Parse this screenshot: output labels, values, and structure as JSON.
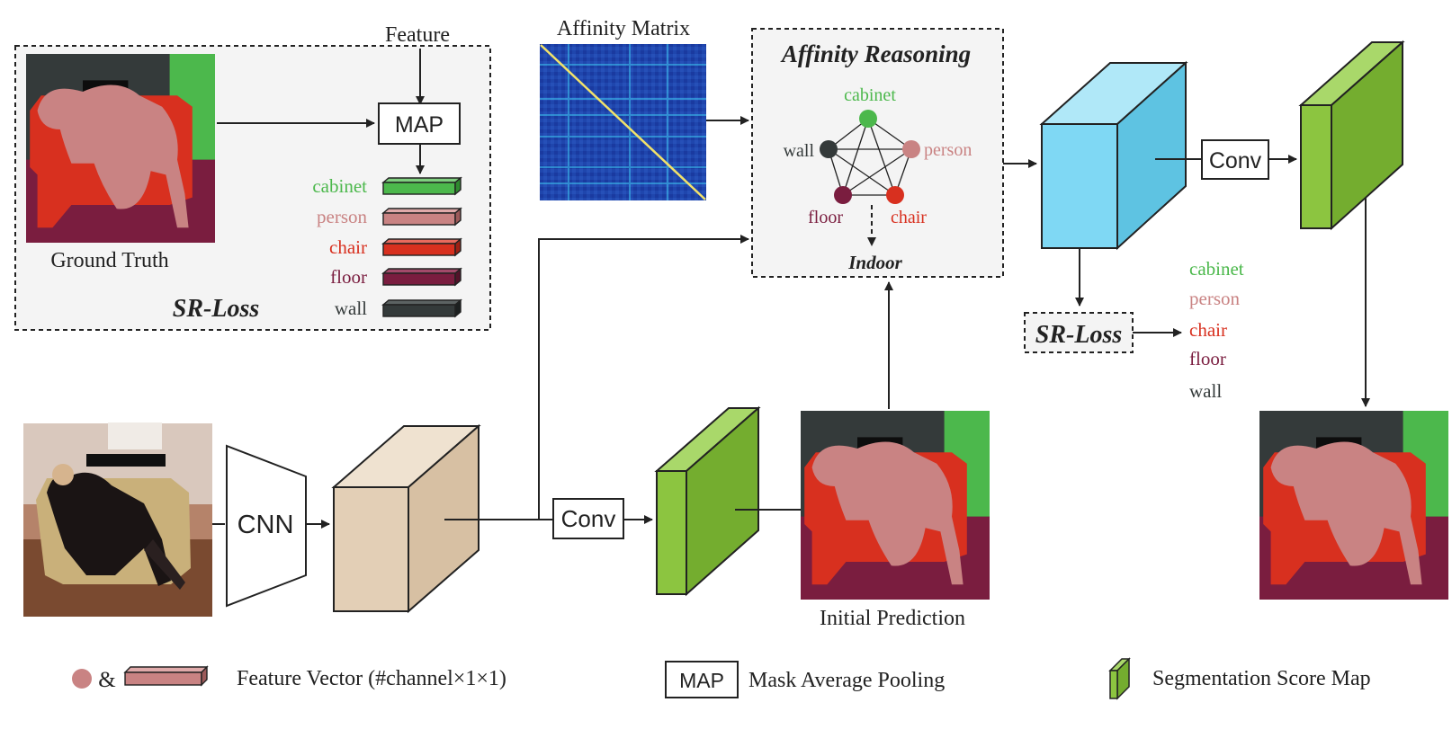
{
  "colors": {
    "cabinet": "#4cb84c",
    "person": "#c98383",
    "chair": "#d8301f",
    "floor": "#7a1d3f",
    "wall": "#343a3a",
    "feature_map": "#e3cfb6",
    "score_map": "#8cc540",
    "aff_cube": "#7fd8f4",
    "matrix_bg": "#1d3fa8",
    "panel_bg": "#f4f4f4"
  },
  "sr_panel": {
    "feature_label": "Feature",
    "map_label": "MAP",
    "gt_label": "Ground Truth",
    "loss_label": "SR-Loss",
    "classes": [
      "cabinet",
      "person",
      "chair",
      "floor",
      "wall"
    ]
  },
  "affinity_matrix": {
    "title": "Affinity Matrix"
  },
  "affinity_reasoning": {
    "title": "Affinity Reasoning",
    "nodes": [
      "cabinet",
      "wall",
      "person",
      "floor",
      "chair"
    ],
    "scene_label": "Indoor"
  },
  "pipeline": {
    "cnn_label": "CNN",
    "conv_label_1": "Conv",
    "conv_label_2": "Conv",
    "initial_prediction_label": "Initial Prediction"
  },
  "sr_loss_right": {
    "label": "SR-Loss",
    "classes": [
      "cabinet",
      "person",
      "chair",
      "floor",
      "wall"
    ]
  },
  "legend": {
    "ampersand": "&",
    "feature_vector_label": "Feature Vector (#channel×1×1)",
    "map_box_label": "MAP",
    "map_desc": "Mask Average Pooling",
    "score_map_label": "Segmentation Score Map"
  },
  "icons": [
    "photo-thumbnail",
    "segmentation-mask",
    "feature-bar",
    "cube"
  ]
}
